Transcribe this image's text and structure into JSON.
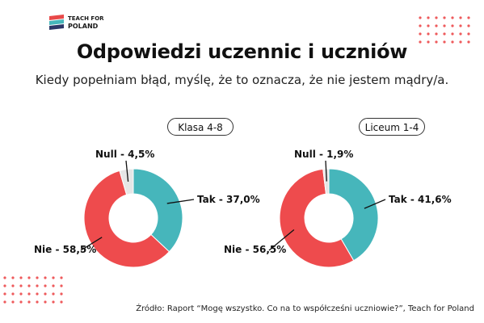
{
  "header": {
    "logo_line1": "TEACH FOR",
    "logo_line2": "POLAND",
    "title": "Odpowiedzi uczennic i uczniów",
    "subtitle": "Kiedy popełniam błąd, myślę, że to oznacza, że nie jestem mądry/a."
  },
  "colors": {
    "tak": "#46b6bb",
    "nie": "#ee4b4d",
    "null": "#e6e6e6",
    "dots": "#ee5a5c",
    "logo_red": "#e84949",
    "logo_teal": "#46b6bb",
    "logo_navy": "#2d3768"
  },
  "chart_data": [
    {
      "type": "pie",
      "title": "Klasa 4-8",
      "series": [
        {
          "name": "Tak",
          "value": 37.0,
          "label": "Tak - 37,0%"
        },
        {
          "name": "Nie",
          "value": 58.5,
          "label": "Nie - 58,5%"
        },
        {
          "name": "Null",
          "value": 4.5,
          "label": "Null - 4,5%"
        }
      ]
    },
    {
      "type": "pie",
      "title": "Liceum 1-4",
      "series": [
        {
          "name": "Tak",
          "value": 41.6,
          "label": "Tak - 41,6%"
        },
        {
          "name": "Nie",
          "value": 56.5,
          "label": "Nie - 56,5%"
        },
        {
          "name": "Null",
          "value": 1.9,
          "label": "Null - 1,9%"
        }
      ]
    }
  ],
  "footer": {
    "source": "Źródło: Raport “Mogę wszystko. Co na to współcześni uczniowie?”, Teach for Poland"
  }
}
